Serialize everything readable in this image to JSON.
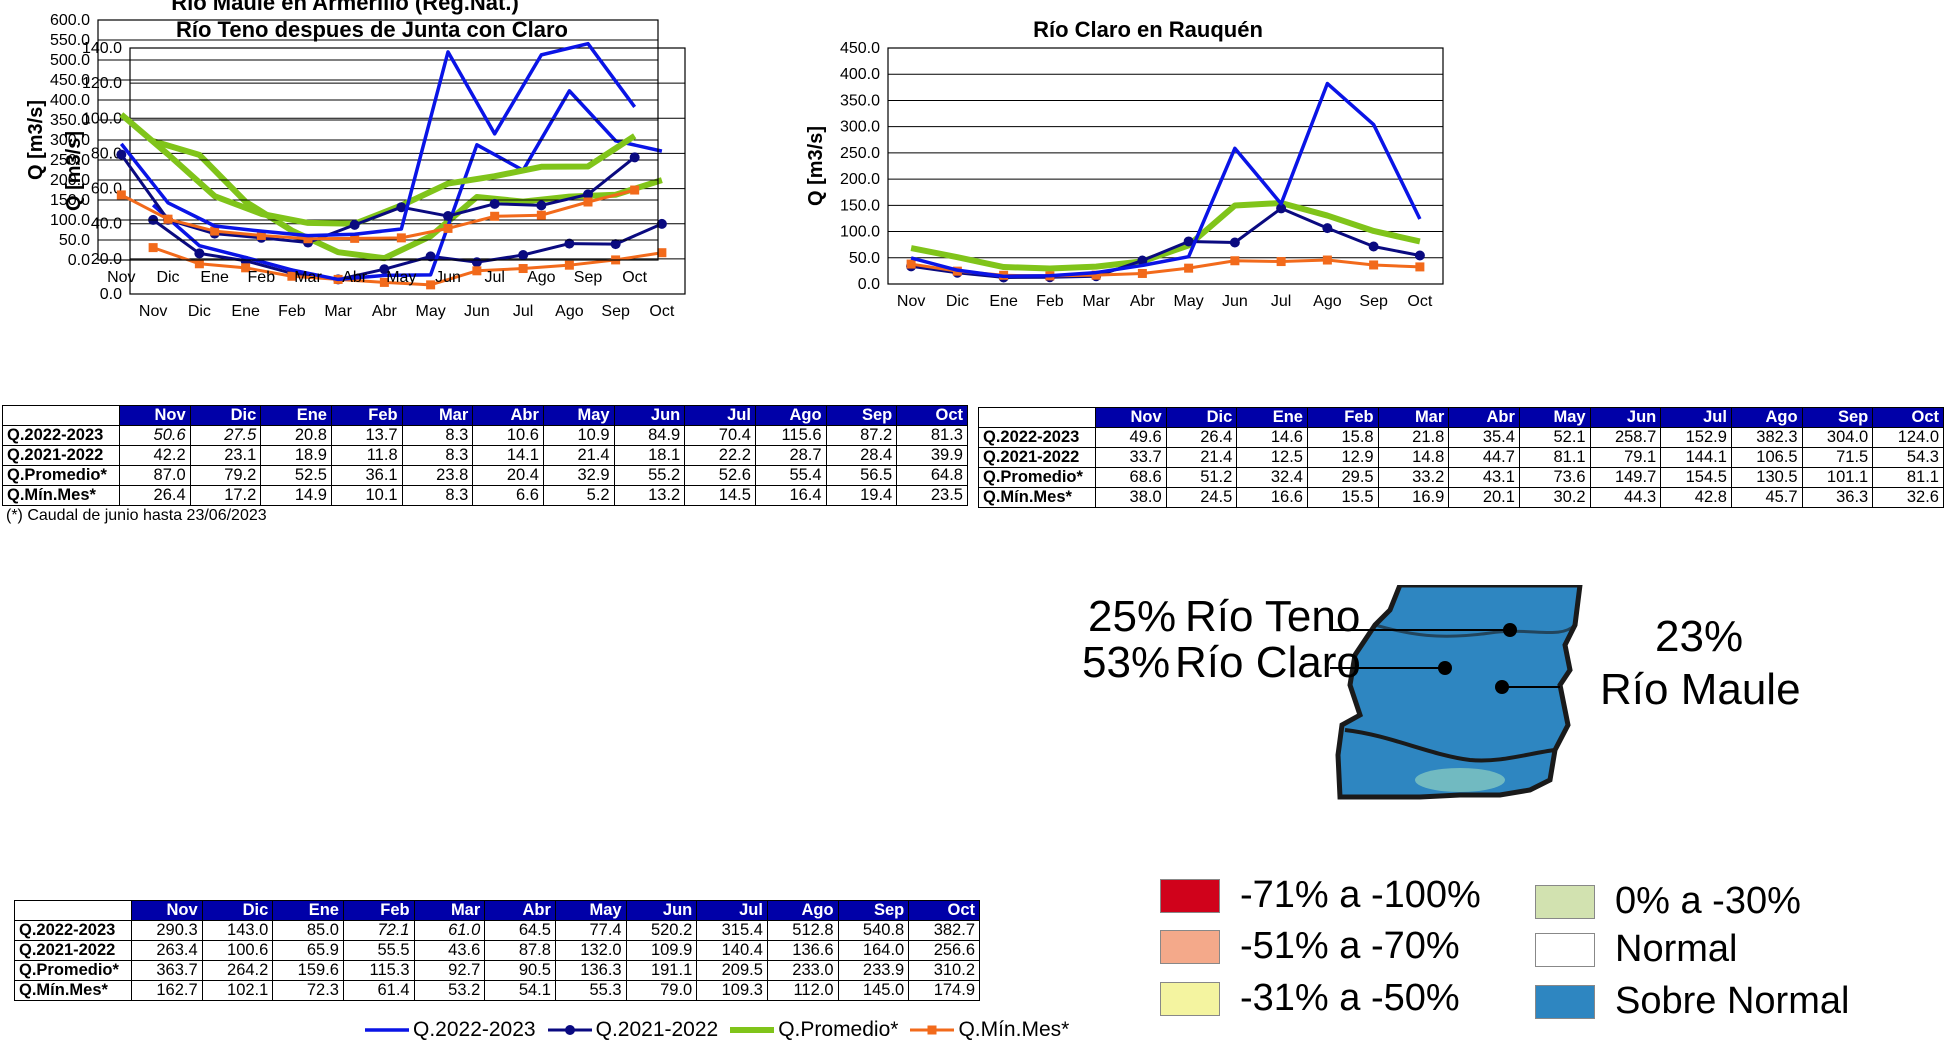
{
  "months": [
    "Nov",
    "Dic",
    "Ene",
    "Feb",
    "Mar",
    "Abr",
    "May",
    "Jun",
    "Jul",
    "Ago",
    "Sep",
    "Oct"
  ],
  "colors": {
    "q2022": "#0a14e6",
    "q2021": "#0a0a80",
    "prom": "#80c41a",
    "min": "#f26a1b",
    "header_bg": "#0000a8",
    "dry_71_100": "#d0021b",
    "dry_51_70": "#f4a98a",
    "dry_31_50": "#f4f4a0",
    "dry_0_30": "#d2e2b0",
    "normal": "#ffffff",
    "sobre_normal": "#2e86c1"
  },
  "series_names": [
    "Q.2022-2023",
    "Q.2021-2022",
    "Q.Promedio*",
    "Q.Mín.Mes*"
  ],
  "table_row_labels": [
    "Q.2022-2023",
    "Q.2021-2022",
    "Q.Promedio*",
    "Q.Mín.Mes*"
  ],
  "footnote": "(*) Caudal de junio hasta 23/06/2023",
  "chart_data": [
    {
      "type": "line",
      "title": "Río Teno despues de Junta con Claro",
      "ylabel": "Q [m3/s]",
      "ylim": [
        0,
        140
      ],
      "yticks": [
        "0.0",
        "20.0",
        "40.0",
        "60.0",
        "80.0",
        "100.0",
        "120.0",
        "140.0"
      ],
      "categories": [
        "Nov",
        "Dic",
        "Ene",
        "Feb",
        "Mar",
        "Abr",
        "May",
        "Jun",
        "Jul",
        "Ago",
        "Sep",
        "Oct"
      ],
      "series": [
        {
          "name": "Q.2022-2023",
          "values": [
            50.6,
            27.5,
            20.8,
            13.7,
            8.3,
            10.6,
            10.9,
            84.9,
            70.4,
            115.6,
            87.2,
            81.3
          ]
        },
        {
          "name": "Q.2021-2022",
          "values": [
            42.2,
            23.1,
            18.9,
            11.8,
            8.3,
            14.1,
            21.4,
            18.1,
            22.2,
            28.7,
            28.4,
            39.9
          ]
        },
        {
          "name": "Q.Promedio*",
          "values": [
            87.0,
            79.2,
            52.5,
            36.1,
            23.8,
            20.4,
            32.9,
            55.2,
            52.6,
            55.4,
            56.5,
            64.8
          ]
        },
        {
          "name": "Q.Mín.Mes*",
          "values": [
            26.4,
            17.2,
            14.9,
            10.1,
            8.3,
            6.6,
            5.2,
            13.2,
            14.5,
            16.4,
            19.4,
            23.5
          ]
        }
      ],
      "table": [
        [
          "50.6",
          "27.5",
          "20.8",
          "13.7",
          "8.3",
          "10.6",
          "10.9",
          "84.9",
          "70.4",
          "115.6",
          "87.2",
          "81.3"
        ],
        [
          "42.2",
          "23.1",
          "18.9",
          "11.8",
          "8.3",
          "14.1",
          "21.4",
          "18.1",
          "22.2",
          "28.7",
          "28.4",
          "39.9"
        ],
        [
          "87.0",
          "79.2",
          "52.5",
          "36.1",
          "23.8",
          "20.4",
          "32.9",
          "55.2",
          "52.6",
          "55.4",
          "56.5",
          "64.8"
        ],
        [
          "26.4",
          "17.2",
          "14.9",
          "10.1",
          "8.3",
          "6.6",
          "5.2",
          "13.2",
          "14.5",
          "16.4",
          "19.4",
          "23.5"
        ]
      ]
    },
    {
      "type": "line",
      "title": "Río Claro en Rauquén",
      "ylabel": "Q [m3/s]",
      "ylim": [
        0,
        450
      ],
      "yticks": [
        "0.0",
        "50.0",
        "100.0",
        "150.0",
        "200.0",
        "250.0",
        "300.0",
        "350.0",
        "400.0",
        "450.0"
      ],
      "categories": [
        "Nov",
        "Dic",
        "Ene",
        "Feb",
        "Mar",
        "Abr",
        "May",
        "Jun",
        "Jul",
        "Ago",
        "Sep",
        "Oct"
      ],
      "series": [
        {
          "name": "Q.2022-2023",
          "values": [
            49.6,
            26.4,
            14.6,
            15.8,
            21.8,
            35.4,
            52.1,
            258.7,
            152.9,
            382.3,
            304.0,
            124.0
          ]
        },
        {
          "name": "Q.2021-2022",
          "values": [
            33.7,
            21.4,
            12.5,
            12.9,
            14.8,
            44.7,
            81.1,
            79.1,
            144.1,
            106.5,
            71.5,
            54.3
          ]
        },
        {
          "name": "Q.Promedio*",
          "values": [
            68.6,
            51.2,
            32.4,
            29.5,
            33.2,
            43.1,
            73.6,
            149.7,
            154.5,
            130.5,
            101.1,
            81.1
          ]
        },
        {
          "name": "Q.Mín.Mes*",
          "values": [
            38.0,
            24.5,
            16.6,
            15.5,
            16.9,
            20.1,
            30.2,
            44.3,
            42.8,
            45.7,
            36.3,
            32.6
          ]
        }
      ],
      "table": [
        [
          "49.6",
          "26.4",
          "14.6",
          "15.8",
          "21.8",
          "35.4",
          "52.1",
          "258.7",
          "152.9",
          "382.3",
          "304.0",
          "124.0"
        ],
        [
          "33.7",
          "21.4",
          "12.5",
          "12.9",
          "14.8",
          "44.7",
          "81.1",
          "79.1",
          "144.1",
          "106.5",
          "71.5",
          "54.3"
        ],
        [
          "68.6",
          "51.2",
          "32.4",
          "29.5",
          "33.2",
          "43.1",
          "73.6",
          "149.7",
          "154.5",
          "130.5",
          "101.1",
          "81.1"
        ],
        [
          "38.0",
          "24.5",
          "16.6",
          "15.5",
          "16.9",
          "20.1",
          "30.2",
          "44.3",
          "42.8",
          "45.7",
          "36.3",
          "32.6"
        ]
      ]
    },
    {
      "type": "line",
      "title": "Río Maule en Armerillo (Reg.Nat.)",
      "ylabel": "Q [m3/s]",
      "ylim": [
        0,
        600
      ],
      "yticks": [
        "0.0",
        "50.0",
        "100.0",
        "150.0",
        "200.0",
        "250.0",
        "300.0",
        "350.0",
        "400.0",
        "450.0",
        "500.0",
        "550.0",
        "600.0"
      ],
      "categories": [
        "Nov",
        "Dic",
        "Ene",
        "Feb",
        "Mar",
        "Abr",
        "May",
        "Jun",
        "Jul",
        "Ago",
        "Sep",
        "Oct"
      ],
      "series": [
        {
          "name": "Q.2022-2023",
          "values": [
            290.3,
            143.0,
            85.0,
            72.1,
            61.0,
            64.5,
            77.4,
            520.2,
            315.4,
            512.8,
            540.8,
            382.7
          ]
        },
        {
          "name": "Q.2021-2022",
          "values": [
            263.4,
            100.6,
            65.9,
            55.5,
            43.6,
            87.8,
            132.0,
            109.9,
            140.4,
            136.6,
            164.0,
            256.6
          ]
        },
        {
          "name": "Q.Promedio*",
          "values": [
            363.7,
            264.2,
            159.6,
            115.3,
            92.7,
            90.5,
            136.3,
            191.1,
            209.5,
            233.0,
            233.9,
            310.2
          ]
        },
        {
          "name": "Q.Mín.Mes*",
          "values": [
            162.7,
            102.1,
            72.3,
            61.4,
            53.2,
            54.1,
            55.3,
            79.0,
            109.3,
            112.0,
            145.0,
            174.9
          ]
        }
      ],
      "table": [
        [
          "290.3",
          "143.0",
          "85.0",
          "72.1",
          "61.0",
          "64.5",
          "77.4",
          "520.2",
          "315.4",
          "512.8",
          "540.8",
          "382.7"
        ],
        [
          "263.4",
          "100.6",
          "65.9",
          "55.5",
          "43.6",
          "87.8",
          "132.0",
          "109.9",
          "140.4",
          "136.6",
          "164.0",
          "256.6"
        ],
        [
          "363.7",
          "264.2",
          "159.6",
          "115.3",
          "92.7",
          "90.5",
          "136.3",
          "191.1",
          "209.5",
          "233.0",
          "233.9",
          "310.2"
        ],
        [
          "162.7",
          "102.1",
          "72.3",
          "61.4",
          "53.2",
          "54.1",
          "55.3",
          "79.0",
          "109.3",
          "112.0",
          "145.0",
          "174.9"
        ]
      ]
    }
  ],
  "map": {
    "teno_pct": "25%",
    "teno_name": "Río Teno",
    "claro_pct": "53%",
    "claro_name": "Río Claro",
    "maule_pct": "23%",
    "maule_name": "Río Maule"
  },
  "legend": [
    {
      "label": "-71% a -100%",
      "color": "#d0021b"
    },
    {
      "label": "-51% a -70%",
      "color": "#f4a98a"
    },
    {
      "label": "-31% a -50%",
      "color": "#f4f4a0"
    },
    {
      "label": "0% a -30%",
      "color": "#d2e2b0"
    },
    {
      "label": "Normal",
      "color": "#ffffff"
    },
    {
      "label": "Sobre Normal",
      "color": "#2e86c1"
    }
  ]
}
